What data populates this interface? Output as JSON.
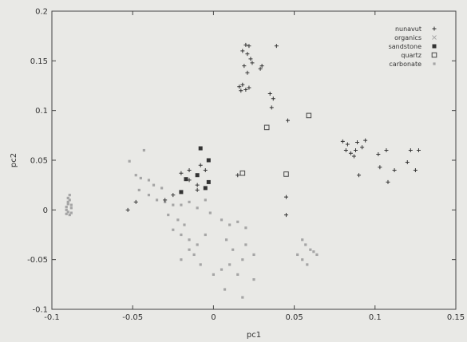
{
  "chart_data": {
    "type": "scatter",
    "title": "",
    "xlabel": "pc1",
    "ylabel": "pc2",
    "xlim": [
      -0.1,
      0.15
    ],
    "ylim": [
      -0.1,
      0.2
    ],
    "xticks": [
      "-0.1",
      "-0.05",
      "0",
      "0.05",
      "0.1",
      "0.15"
    ],
    "xtick_values": [
      -0.1,
      -0.05,
      0,
      0.05,
      0.1,
      0.15
    ],
    "yticks": [
      "0.2",
      "0.15",
      "0.1",
      "0.05",
      "0",
      "-0.05",
      "-0.1"
    ],
    "ytick_values": [
      0.2,
      0.15,
      0.1,
      0.05,
      0,
      -0.05,
      -0.1
    ],
    "grid": false,
    "legend_position": "top-right",
    "series": [
      {
        "name": "nunavut",
        "marker": "plus",
        "color": "#333333",
        "points": [
          [
            0.018,
            0.16
          ],
          [
            0.02,
            0.166
          ],
          [
            0.022,
            0.165
          ],
          [
            0.021,
            0.157
          ],
          [
            0.023,
            0.152
          ],
          [
            0.024,
            0.148
          ],
          [
            0.019,
            0.145
          ],
          [
            0.021,
            0.138
          ],
          [
            0.03,
            0.145
          ],
          [
            0.029,
            0.142
          ],
          [
            0.039,
            0.165
          ],
          [
            0.016,
            0.124
          ],
          [
            0.018,
            0.126
          ],
          [
            0.02,
            0.121
          ],
          [
            0.022,
            0.123
          ],
          [
            0.017,
            0.12
          ],
          [
            0.035,
            0.117
          ],
          [
            0.037,
            0.112
          ],
          [
            0.036,
            0.103
          ],
          [
            0.046,
            0.09
          ],
          [
            0.08,
            0.069
          ],
          [
            0.083,
            0.066
          ],
          [
            0.082,
            0.06
          ],
          [
            0.085,
            0.057
          ],
          [
            0.087,
            0.054
          ],
          [
            0.088,
            0.06
          ],
          [
            0.089,
            0.068
          ],
          [
            0.092,
            0.063
          ],
          [
            0.094,
            0.07
          ],
          [
            0.102,
            0.056
          ],
          [
            0.107,
            0.06
          ],
          [
            0.122,
            0.06
          ],
          [
            0.127,
            0.06
          ],
          [
            0.12,
            0.048
          ],
          [
            0.125,
            0.04
          ],
          [
            0.103,
            0.043
          ],
          [
            0.112,
            0.04
          ],
          [
            0.108,
            0.028
          ],
          [
            0.09,
            0.035
          ],
          [
            -0.02,
            0.037
          ],
          [
            -0.015,
            0.04
          ],
          [
            -0.008,
            0.045
          ],
          [
            -0.005,
            0.04
          ],
          [
            -0.015,
            0.03
          ],
          [
            -0.01,
            0.025
          ],
          [
            -0.01,
            0.02
          ],
          [
            -0.048,
            0.008
          ],
          [
            -0.053,
            0.0
          ],
          [
            -0.03,
            0.01
          ],
          [
            -0.025,
            0.015
          ],
          [
            0.045,
            0.013
          ],
          [
            0.045,
            -0.005
          ],
          [
            0.015,
            0.035
          ]
        ]
      },
      {
        "name": "organics",
        "marker": "cross",
        "color": "#aaaaaa",
        "points": []
      },
      {
        "name": "sandstone",
        "marker": "filled-square",
        "color": "#333333",
        "points": [
          [
            -0.008,
            0.062
          ],
          [
            -0.003,
            0.05
          ],
          [
            -0.01,
            0.035
          ],
          [
            -0.017,
            0.031
          ],
          [
            -0.005,
            0.022
          ],
          [
            -0.02,
            0.018
          ],
          [
            -0.003,
            0.028
          ]
        ]
      },
      {
        "name": "quartz",
        "marker": "open-square",
        "color": "#444444",
        "points": [
          [
            0.033,
            0.083
          ],
          [
            0.059,
            0.095
          ],
          [
            0.018,
            0.037
          ],
          [
            0.045,
            0.036
          ]
        ]
      },
      {
        "name": "carbonate",
        "marker": "dot",
        "color": "#a5a5a5",
        "points": [
          [
            -0.043,
            0.06
          ],
          [
            -0.052,
            0.049
          ],
          [
            -0.048,
            0.035
          ],
          [
            -0.045,
            0.032
          ],
          [
            -0.04,
            0.03
          ],
          [
            -0.037,
            0.025
          ],
          [
            -0.032,
            0.022
          ],
          [
            -0.046,
            0.02
          ],
          [
            -0.04,
            0.015
          ],
          [
            -0.035,
            0.01
          ],
          [
            -0.03,
            0.008
          ],
          [
            -0.025,
            0.005
          ],
          [
            -0.02,
            0.005
          ],
          [
            -0.015,
            0.008
          ],
          [
            -0.01,
            0.002
          ],
          [
            -0.005,
            0.01
          ],
          [
            -0.028,
            -0.005
          ],
          [
            -0.022,
            -0.01
          ],
          [
            -0.018,
            -0.015
          ],
          [
            -0.025,
            -0.02
          ],
          [
            -0.02,
            -0.025
          ],
          [
            -0.015,
            -0.03
          ],
          [
            -0.01,
            -0.035
          ],
          [
            -0.005,
            -0.025
          ],
          [
            -0.015,
            -0.04
          ],
          [
            -0.012,
            -0.045
          ],
          [
            -0.02,
            -0.05
          ],
          [
            -0.008,
            -0.055
          ],
          [
            -0.002,
            -0.003
          ],
          [
            0.005,
            -0.01
          ],
          [
            0.01,
            -0.015
          ],
          [
            0.015,
            -0.012
          ],
          [
            0.02,
            -0.018
          ],
          [
            0.008,
            -0.03
          ],
          [
            0.012,
            -0.04
          ],
          [
            0.02,
            -0.035
          ],
          [
            0.025,
            -0.045
          ],
          [
            0.018,
            -0.05
          ],
          [
            0.01,
            -0.055
          ],
          [
            0.005,
            -0.06
          ],
          [
            0.0,
            -0.065
          ],
          [
            0.015,
            -0.065
          ],
          [
            0.025,
            -0.07
          ],
          [
            0.007,
            -0.08
          ],
          [
            0.018,
            -0.088
          ],
          [
            0.055,
            -0.03
          ],
          [
            0.057,
            -0.035
          ],
          [
            0.06,
            -0.04
          ],
          [
            0.062,
            -0.042
          ],
          [
            0.064,
            -0.045
          ],
          [
            0.052,
            -0.045
          ],
          [
            0.055,
            -0.05
          ],
          [
            0.058,
            -0.055
          ],
          [
            -0.089,
            0.015
          ],
          [
            -0.09,
            0.008
          ],
          [
            -0.088,
            0.005
          ],
          [
            -0.091,
            0.0
          ],
          [
            -0.09,
            -0.002
          ],
          [
            -0.089,
            -0.005
          ],
          [
            -0.091,
            0.003
          ],
          [
            -0.09,
            0.012
          ],
          [
            -0.088,
            0.002
          ],
          [
            -0.091,
            -0.004
          ],
          [
            -0.089,
            0.01
          ],
          [
            -0.088,
            -0.003
          ],
          [
            -0.09,
            0.006
          ]
        ]
      }
    ]
  }
}
